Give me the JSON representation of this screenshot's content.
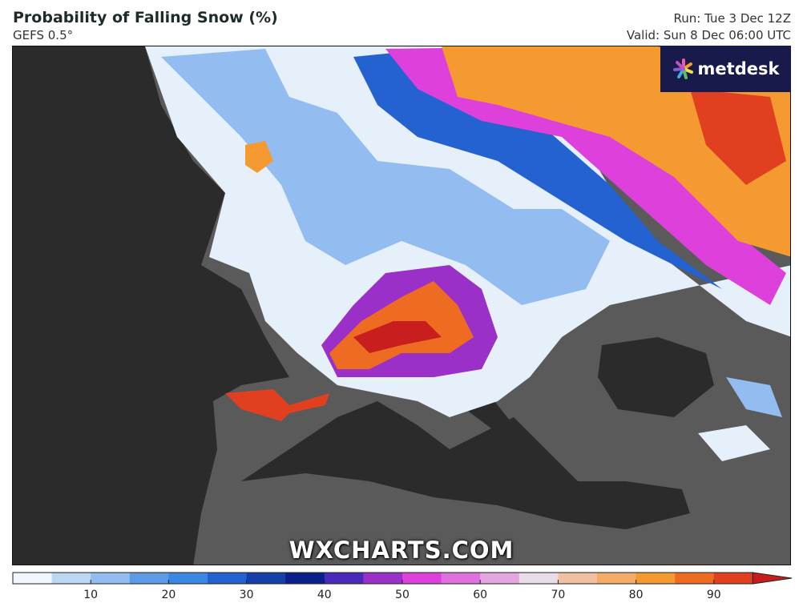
{
  "header": {
    "title": "Probability of Falling Snow (%)",
    "subtitle": "GEFS 0.5°",
    "run": "Run: Tue 3 Dec 12Z",
    "valid": "Valid: Sun 8 Dec 06:00 UTC"
  },
  "logo": {
    "text": "metdesk",
    "icon": "flower-burst-icon"
  },
  "watermark": "WXCHARTS.COM",
  "colors": {
    "sea": "#2b2b2b",
    "land": "#5a5a5a",
    "logo_bg": "#171a4a"
  },
  "colorbar": {
    "bins": [
      {
        "from": 0,
        "to": 5,
        "color": "#f0f6fc"
      },
      {
        "from": 5,
        "to": 10,
        "color": "#bcd7f3"
      },
      {
        "from": 10,
        "to": 15,
        "color": "#93bdf0"
      },
      {
        "from": 15,
        "to": 20,
        "color": "#5d9be6"
      },
      {
        "from": 20,
        "to": 25,
        "color": "#3b87e4"
      },
      {
        "from": 25,
        "to": 30,
        "color": "#2362d0"
      },
      {
        "from": 30,
        "to": 35,
        "color": "#1440a8"
      },
      {
        "from": 35,
        "to": 40,
        "color": "#0a1e8c"
      },
      {
        "from": 40,
        "to": 45,
        "color": "#4a2ab8"
      },
      {
        "from": 45,
        "to": 50,
        "color": "#9a30c8"
      },
      {
        "from": 50,
        "to": 55,
        "color": "#de40dc"
      },
      {
        "from": 55,
        "to": 60,
        "color": "#e070de"
      },
      {
        "from": 60,
        "to": 65,
        "color": "#e4a6e0"
      },
      {
        "from": 65,
        "to": 70,
        "color": "#e8dce8"
      },
      {
        "from": 70,
        "to": 75,
        "color": "#f0c0a0"
      },
      {
        "from": 75,
        "to": 80,
        "color": "#f4ac68"
      },
      {
        "from": 80,
        "to": 85,
        "color": "#f49a30"
      },
      {
        "from": 85,
        "to": 90,
        "color": "#ee6c22"
      },
      {
        "from": 90,
        "to": 95,
        "color": "#e04020"
      },
      {
        "from": 95,
        "to": 100,
        "color": "#c81e1e"
      }
    ],
    "ticks": [
      "10",
      "20",
      "30",
      "40",
      "50",
      "60",
      "70",
      "80",
      "90"
    ]
  }
}
